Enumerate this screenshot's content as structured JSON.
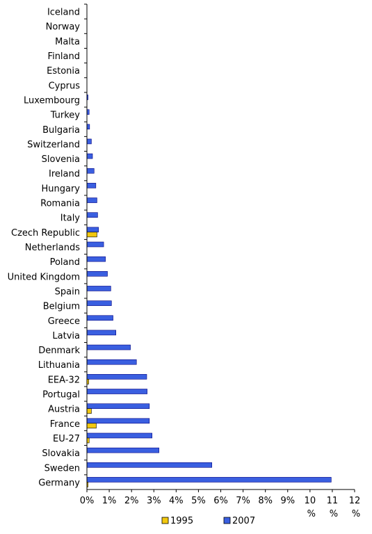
{
  "chart_data": {
    "type": "bar",
    "orientation": "horizontal",
    "categories": [
      "Iceland",
      "Norway",
      "Malta",
      "Finland",
      "Estonia",
      "Cyprus",
      "Luxembourg",
      "Turkey",
      "Bulgaria",
      "Switzerland",
      "Slovenia",
      "Ireland",
      "Hungary",
      "Romania",
      "Italy",
      "Czech Republic",
      "Netherlands",
      "Poland",
      "United Kingdom",
      "Spain",
      "Belgium",
      "Greece",
      "Latvia",
      "Denmark",
      "Lithuania",
      "EEA-32",
      "Portugal",
      "Austria",
      "France",
      "EU-27",
      "Slovakia",
      "Sweden",
      "Germany"
    ],
    "series": [
      {
        "name": "1995",
        "color": "#f2c80f",
        "values": [
          0,
          0,
          0,
          0,
          0,
          0,
          0,
          0,
          0,
          0,
          0,
          0,
          0,
          0,
          0,
          0.45,
          0,
          0,
          0,
          0,
          0,
          0,
          0,
          0,
          0,
          0.08,
          0,
          0.2,
          0.42,
          0.1,
          0,
          0,
          0.05
        ]
      },
      {
        "name": "2007",
        "color": "#3a5fe0",
        "values": [
          0,
          0,
          0,
          0,
          0,
          0,
          0.05,
          0.1,
          0.12,
          0.2,
          0.25,
          0.32,
          0.4,
          0.45,
          0.48,
          0.52,
          0.75,
          0.83,
          0.92,
          1.07,
          1.1,
          1.17,
          1.3,
          1.95,
          2.22,
          2.68,
          2.7,
          2.8,
          2.8,
          2.92,
          3.23,
          5.6,
          10.95
        ]
      }
    ],
    "x_ticks": [
      {
        "top": "0%",
        "bottom": ""
      },
      {
        "top": "1%",
        "bottom": ""
      },
      {
        "top": "2%",
        "bottom": ""
      },
      {
        "top": "3%",
        "bottom": ""
      },
      {
        "top": "4%",
        "bottom": ""
      },
      {
        "top": "5%",
        "bottom": ""
      },
      {
        "top": "6%",
        "bottom": ""
      },
      {
        "top": "7%",
        "bottom": ""
      },
      {
        "top": "8%",
        "bottom": ""
      },
      {
        "top": "9%",
        "bottom": ""
      },
      {
        "top": "10",
        "bottom": "%"
      },
      {
        "top": "11",
        "bottom": "%"
      },
      {
        "top": "12",
        "bottom": "%"
      }
    ],
    "xlim": [
      0,
      12
    ],
    "title": "",
    "xlabel": "",
    "ylabel": "",
    "grid": false,
    "legend": "bottom"
  }
}
